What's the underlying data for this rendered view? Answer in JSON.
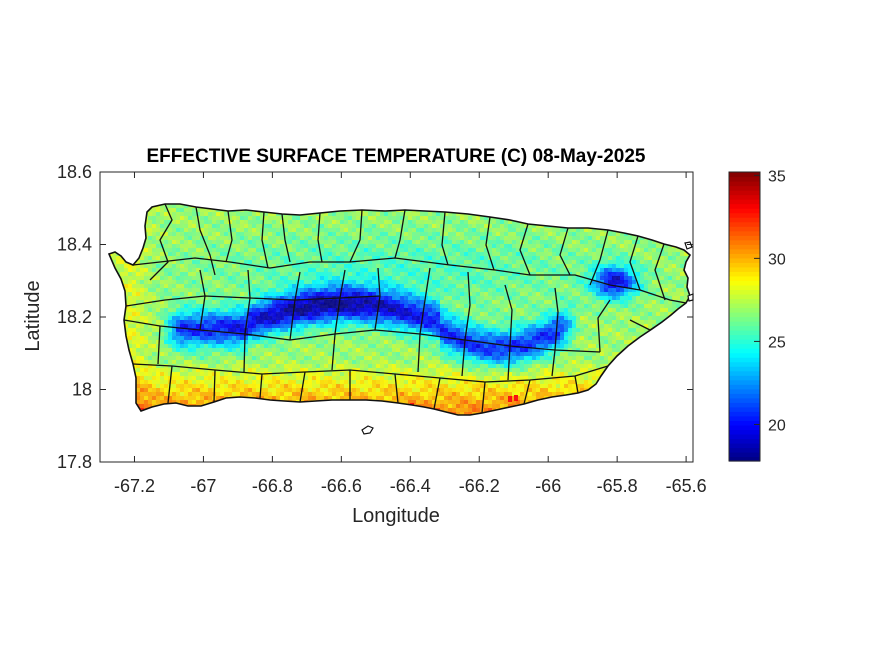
{
  "chart_data": {
    "type": "heatmap",
    "title": "EFFECTIVE SURFACE TEMPERATURE (C) 08-May-2025",
    "xlabel": "Longitude",
    "ylabel": "Latitude",
    "xlim": [
      -67.3,
      -65.58
    ],
    "ylim": [
      17.8,
      18.6
    ],
    "x_ticks": [
      -67.2,
      -67,
      -66.8,
      -66.6,
      -66.4,
      -66.2,
      -66,
      -65.8,
      -65.6
    ],
    "x_tick_labels": [
      "-67.2",
      "-67",
      "-66.8",
      "-66.6",
      "-66.4",
      "-66.2",
      "-66",
      "-65.8",
      "-65.6"
    ],
    "y_ticks": [
      17.8,
      18,
      18.2,
      18.4,
      18.6
    ],
    "y_tick_labels": [
      "17.8",
      "18",
      "18.2",
      "18.4",
      "18.6"
    ],
    "colorbar": {
      "colormap": "jet",
      "min": 17.8,
      "max": 35.2,
      "ticks": [
        20,
        25,
        30,
        35
      ],
      "tick_labels": [
        "20",
        "25",
        "30",
        "35"
      ]
    },
    "field_summary": {
      "coastal_typical": 27,
      "north_coast_typical": 26,
      "south_coast_max": 33,
      "central_ridge_min": 18.5,
      "northeast_peak_min": 19.5
    },
    "grid": false
  }
}
